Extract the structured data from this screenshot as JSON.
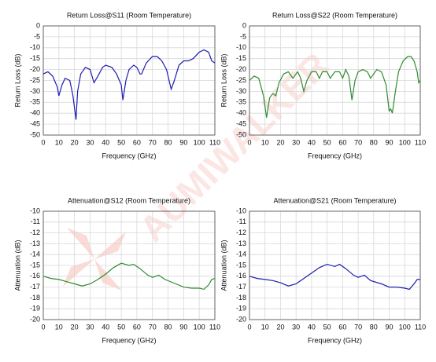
{
  "watermark": "AUMIWALKER",
  "chart_data": [
    {
      "type": "line",
      "title": "Return Loss@S11 (Room Temperature)",
      "xlabel": "Frequency (GHz)",
      "ylabel": "Return Loss (dB)",
      "color": "#1c1cb0",
      "grid": true,
      "xlim": [
        0,
        110
      ],
      "xticks": [
        0,
        10,
        20,
        30,
        40,
        50,
        60,
        70,
        80,
        90,
        100,
        110
      ],
      "ylim": [
        -50,
        0
      ],
      "yticks": [
        0,
        -5,
        -10,
        -15,
        -20,
        -25,
        -30,
        -35,
        -40,
        -45,
        -50
      ],
      "x": [
        0,
        3,
        6,
        9,
        10,
        12,
        14,
        17,
        19,
        21,
        22,
        24,
        27,
        30,
        32.5,
        35,
        38,
        40,
        44,
        47,
        50,
        51,
        53,
        55,
        58,
        60,
        62,
        63,
        66,
        70,
        73,
        76,
        79,
        81,
        82,
        84,
        87,
        90,
        93,
        96,
        100,
        103,
        106,
        108,
        110
      ],
      "values": [
        -22,
        -21,
        -23,
        -28,
        -32,
        -27,
        -24,
        -25,
        -32,
        -43,
        -30,
        -22,
        -19,
        -20,
        -26,
        -23,
        -19,
        -18,
        -19,
        -22,
        -27,
        -34,
        -25,
        -20,
        -18,
        -19,
        -22,
        -22,
        -17,
        -14,
        -14,
        -16,
        -20,
        -26,
        -29,
        -25,
        -18,
        -16,
        -16,
        -15,
        -12,
        -11,
        -12,
        -16,
        -17
      ]
    },
    {
      "type": "line",
      "title": "Return Loss@S22 (Room Temperature)",
      "xlabel": "Frequency (GHz)",
      "ylabel": "Return Loss (dB)",
      "color": "#2e8b2e",
      "grid": true,
      "xlim": [
        0,
        110
      ],
      "xticks": [
        0,
        10,
        20,
        30,
        40,
        50,
        60,
        70,
        80,
        90,
        100,
        110
      ],
      "ylim": [
        -50,
        0
      ],
      "yticks": [
        0,
        -5,
        -10,
        -15,
        -20,
        -25,
        -30,
        -35,
        -40,
        -45,
        -50
      ],
      "x": [
        0,
        3,
        6,
        9,
        11,
        13,
        15,
        17,
        19,
        22,
        25,
        28,
        31,
        33,
        35,
        37,
        40,
        43,
        45,
        47,
        50,
        52,
        55,
        58,
        60,
        62,
        64,
        66,
        68,
        70,
        73,
        76,
        78,
        80,
        82,
        85,
        88,
        90,
        91,
        92,
        94,
        96,
        99,
        102,
        104,
        106,
        108,
        109,
        110
      ],
      "values": [
        -25,
        -23,
        -24,
        -32,
        -42,
        -33,
        -31,
        -32,
        -26,
        -22,
        -21,
        -24,
        -21,
        -24,
        -30,
        -25,
        -21,
        -21,
        -24,
        -21,
        -21,
        -24,
        -21,
        -21,
        -24,
        -20,
        -23,
        -34,
        -25,
        -21,
        -20,
        -21,
        -24,
        -22,
        -20,
        -21,
        -27,
        -39,
        -38,
        -40,
        -30,
        -21,
        -16,
        -14,
        -14,
        -16,
        -21,
        -26,
        -25
      ]
    },
    {
      "type": "line",
      "title": "Attenuation@S12 (Room Temperature)",
      "xlabel": "Frequency (GHz)",
      "ylabel": "Attenuation (dB)",
      "color": "#2e8b2e",
      "grid": true,
      "xlim": [
        0,
        110
      ],
      "xticks": [
        0,
        10,
        20,
        30,
        40,
        50,
        60,
        70,
        80,
        90,
        100,
        110
      ],
      "ylim": [
        -20,
        -10
      ],
      "yticks": [
        -10,
        -11,
        -12,
        -13,
        -14,
        -15,
        -16,
        -17,
        -18,
        -19,
        -20
      ],
      "x": [
        0,
        5,
        10,
        15,
        20,
        25,
        30,
        35,
        40,
        45,
        50,
        55,
        58,
        62,
        67,
        70,
        74,
        78,
        85,
        90,
        95,
        100,
        103,
        106,
        108,
        110
      ],
      "values": [
        -16,
        -16.2,
        -16.3,
        -16.5,
        -16.7,
        -16.9,
        -16.7,
        -16.3,
        -15.8,
        -15.2,
        -14.8,
        -15,
        -14.9,
        -15.3,
        -15.9,
        -16.1,
        -15.9,
        -16.3,
        -16.7,
        -17,
        -17.1,
        -17.1,
        -17.2,
        -16.8,
        -16.3,
        -16.2
      ]
    },
    {
      "type": "line",
      "title": "Attenuation@S21 (Room Temperature)",
      "xlabel": "Frequency (GHz)",
      "ylabel": "Attenuation (dB)",
      "color": "#1c1cb0",
      "grid": true,
      "xlim": [
        0,
        110
      ],
      "xticks": [
        0,
        10,
        20,
        30,
        40,
        50,
        60,
        70,
        80,
        90,
        100,
        110
      ],
      "ylim": [
        -20,
        -10
      ],
      "yticks": [
        -10,
        -11,
        -12,
        -13,
        -14,
        -15,
        -16,
        -17,
        -18,
        -19,
        -20
      ],
      "x": [
        0,
        5,
        10,
        15,
        20,
        25,
        30,
        35,
        40,
        45,
        50,
        55,
        58,
        62,
        67,
        70,
        74,
        78,
        85,
        90,
        95,
        100,
        103,
        106,
        108,
        110
      ],
      "values": [
        -16,
        -16.2,
        -16.3,
        -16.4,
        -16.6,
        -16.9,
        -16.7,
        -16.2,
        -15.7,
        -15.2,
        -14.9,
        -15.1,
        -14.9,
        -15.3,
        -15.9,
        -16.1,
        -15.9,
        -16.4,
        -16.7,
        -17,
        -17,
        -17.1,
        -17.2,
        -16.7,
        -16.3,
        -16.3
      ]
    }
  ]
}
